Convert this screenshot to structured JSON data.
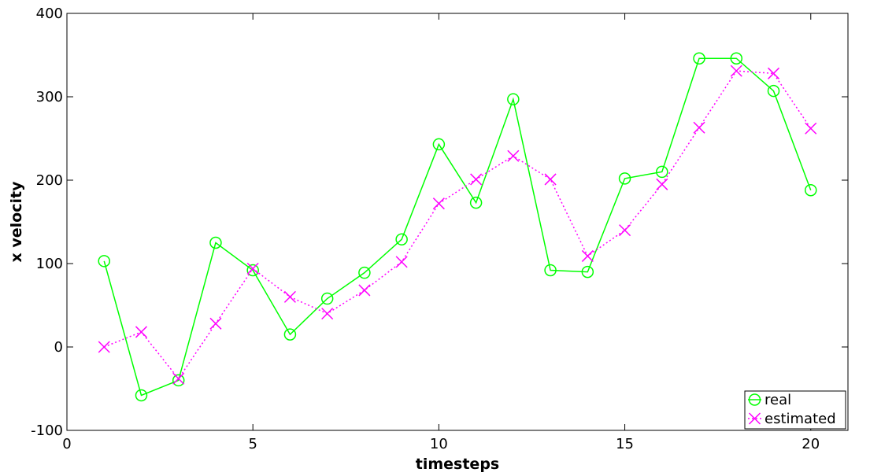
{
  "chart_data": {
    "type": "line",
    "xlabel": "timesteps",
    "ylabel": "x velocity",
    "xlim": [
      0,
      21
    ],
    "ylim": [
      -100,
      400
    ],
    "x_ticks": [
      0,
      5,
      10,
      15,
      20
    ],
    "y_ticks": [
      -100,
      0,
      100,
      200,
      300,
      400
    ],
    "grid": false,
    "legend_position": "bottom-right",
    "x": [
      1,
      2,
      3,
      4,
      5,
      6,
      7,
      8,
      9,
      10,
      11,
      12,
      13,
      14,
      15,
      16,
      17,
      18,
      19,
      20
    ],
    "series": [
      {
        "name": "real",
        "color": "#00ff00",
        "marker": "circle",
        "line_style": "solid",
        "values": [
          103,
          -58,
          -40,
          125,
          92,
          15,
          58,
          89,
          129,
          243,
          173,
          297,
          92,
          90,
          202,
          210,
          346,
          346,
          307,
          188
        ]
      },
      {
        "name": "estimated",
        "color": "#ff00ff",
        "marker": "x",
        "line_style": "dotted",
        "values": [
          0,
          18,
          -38,
          28,
          94,
          60,
          40,
          68,
          102,
          172,
          201,
          229,
          201,
          109,
          140,
          195,
          263,
          331,
          328,
          262
        ]
      }
    ]
  }
}
